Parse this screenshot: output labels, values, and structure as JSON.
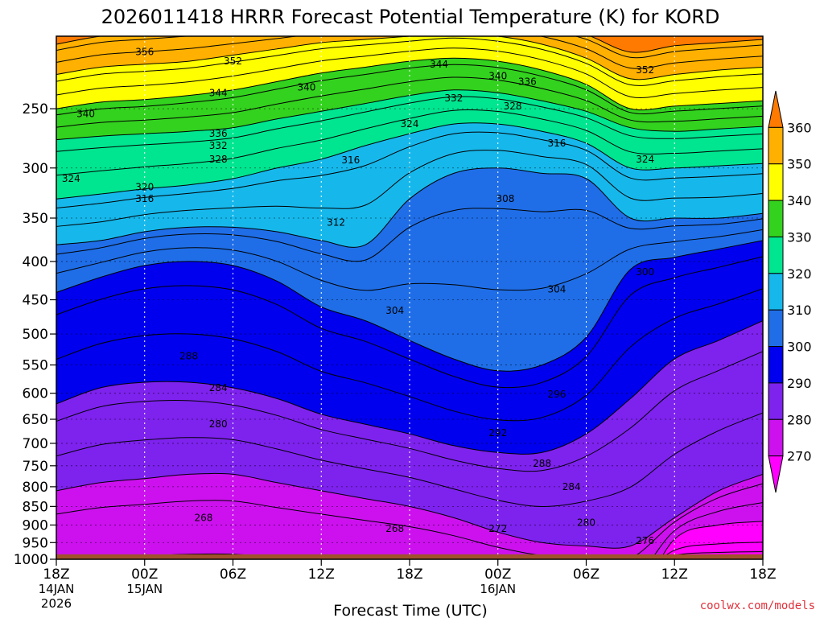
{
  "title": "2026011418 HRRR Forecast Potential Temperature (K) for KORD",
  "credit": "coolwx.com/models",
  "colors": {
    "ground": "#a0522d",
    "background": "#ffffff"
  },
  "chart_data": {
    "type": "heatmap",
    "title": "2026011418 HRRR Forecast Potential Temperature (K) for KORD",
    "xlabel": "Forecast Time (UTC)",
    "ylabel": "",
    "x_range_hours": [
      0,
      48
    ],
    "y_range_hpa": [
      1000,
      200
    ],
    "y_scale": "log-pressure",
    "grid": true,
    "x_ticks": [
      {
        "hour": 0,
        "label": "18Z",
        "sub": [
          "14JAN",
          "2026"
        ]
      },
      {
        "hour": 6,
        "label": "00Z",
        "sub": [
          "15JAN"
        ]
      },
      {
        "hour": 12,
        "label": "06Z",
        "sub": []
      },
      {
        "hour": 18,
        "label": "12Z",
        "sub": []
      },
      {
        "hour": 24,
        "label": "18Z",
        "sub": []
      },
      {
        "hour": 30,
        "label": "00Z",
        "sub": [
          "16JAN"
        ]
      },
      {
        "hour": 36,
        "label": "06Z",
        "sub": []
      },
      {
        "hour": 42,
        "label": "12Z",
        "sub": []
      },
      {
        "hour": 48,
        "label": "18Z",
        "sub": []
      }
    ],
    "y_ticks": [
      250,
      300,
      350,
      400,
      450,
      500,
      550,
      600,
      650,
      700,
      750,
      800,
      850,
      900,
      950,
      1000
    ],
    "colorbar": {
      "levels": [
        270,
        280,
        290,
        300,
        310,
        320,
        330,
        340,
        350,
        360
      ],
      "colors": [
        "#ff00ff",
        "#cc11ee",
        "#7e22ee",
        "#0000ee",
        "#1f6ee8",
        "#16b8ec",
        "#00e690",
        "#33d21e",
        "#ffff00",
        "#ffb000",
        "#ff7a00"
      ],
      "min_value": 260,
      "max_value": 370
    },
    "theta_levels": [
      270,
      280,
      290,
      300,
      310,
      320,
      330,
      340,
      350,
      360
    ],
    "columns": [
      {
        "hour": 0,
        "p": [
          null,
          810,
          620,
          440,
          380,
          330,
          275,
          250,
          225,
          205
        ]
      },
      {
        "hour": 3,
        "p": [
          null,
          790,
          590,
          420,
          375,
          325,
          272,
          245,
          220,
          200
        ]
      },
      {
        "hour": 6,
        "p": [
          null,
          780,
          580,
          405,
          365,
          320,
          270,
          243,
          218,
          198
        ]
      },
      {
        "hour": 9,
        "p": [
          null,
          770,
          580,
          400,
          360,
          316,
          268,
          240,
          216,
          196
        ]
      },
      {
        "hour": 12,
        "p": [
          null,
          770,
          590,
          405,
          360,
          310,
          265,
          236,
          212,
          194
        ]
      },
      {
        "hour": 15,
        "p": [
          null,
          790,
          610,
          425,
          365,
          300,
          258,
          230,
          208,
          192
        ]
      },
      {
        "hour": 18,
        "p": [
          null,
          810,
          640,
          460,
          375,
          292,
          252,
          224,
          204,
          190
        ]
      },
      {
        "hour": 21,
        "p": [
          null,
          830,
          660,
          480,
          380,
          280,
          246,
          220,
          202,
          189
        ]
      },
      {
        "hour": 24,
        "p": [
          null,
          850,
          680,
          510,
          330,
          270,
          240,
          216,
          200,
          188
        ]
      },
      {
        "hour": 27,
        "p": [
          null,
          880,
          705,
          540,
          305,
          262,
          236,
          214,
          198,
          188
        ]
      },
      {
        "hour": 30,
        "p": [
          null,
          920,
          720,
          560,
          300,
          262,
          238,
          216,
          200,
          190
        ]
      },
      {
        "hour": 33,
        "p": [
          null,
          950,
          720,
          550,
          305,
          268,
          244,
          222,
          205,
          193
        ]
      },
      {
        "hour": 36,
        "p": [
          null,
          960,
          680,
          505,
          310,
          278,
          252,
          232,
          214,
          199
        ]
      },
      {
        "hour": 39,
        "p": [
          null,
          960,
          610,
          410,
          350,
          300,
          265,
          250,
          228,
          210
        ]
      },
      {
        "hour": 42,
        "p": [
          940,
          880,
          540,
          395,
          350,
          300,
          268,
          248,
          225,
          206
        ]
      },
      {
        "hour": 45,
        "p": [
          900,
          810,
          510,
          385,
          350,
          298,
          266,
          246,
          222,
          204
        ]
      },
      {
        "hour": 48,
        "p": [
          890,
          770,
          480,
          375,
          345,
          296,
          264,
          244,
          220,
          202
        ]
      }
    ],
    "ground_top_hpa": 985,
    "contour_labels": [
      {
        "value": "356",
        "hour": 6.0,
        "p": 210
      },
      {
        "value": "352",
        "hour": 12.0,
        "p": 216
      },
      {
        "value": "344",
        "hour": 26.0,
        "p": 218
      },
      {
        "value": "340",
        "hour": 30.0,
        "p": 226
      },
      {
        "value": "336",
        "hour": 32.0,
        "p": 230
      },
      {
        "value": "352",
        "hour": 40.0,
        "p": 222
      },
      {
        "value": "344",
        "hour": 11.0,
        "p": 238
      },
      {
        "value": "340",
        "hour": 17.0,
        "p": 234
      },
      {
        "value": "332",
        "hour": 27.0,
        "p": 242
      },
      {
        "value": "328",
        "hour": 31.0,
        "p": 248
      },
      {
        "value": "340",
        "hour": 2.0,
        "p": 254
      },
      {
        "value": "324",
        "hour": 24.0,
        "p": 262
      },
      {
        "value": "336",
        "hour": 11.0,
        "p": 270
      },
      {
        "value": "332",
        "hour": 11.0,
        "p": 280
      },
      {
        "value": "328",
        "hour": 11.0,
        "p": 292
      },
      {
        "value": "316",
        "hour": 34.0,
        "p": 278
      },
      {
        "value": "316",
        "hour": 20.0,
        "p": 293
      },
      {
        "value": "324",
        "hour": 40.0,
        "p": 292
      },
      {
        "value": "324",
        "hour": 1.0,
        "p": 310
      },
      {
        "value": "320",
        "hour": 6.0,
        "p": 318
      },
      {
        "value": "316",
        "hour": 6.0,
        "p": 330
      },
      {
        "value": "308",
        "hour": 30.5,
        "p": 330
      },
      {
        "value": "312",
        "hour": 19.0,
        "p": 355
      },
      {
        "value": "300",
        "hour": 40.0,
        "p": 413
      },
      {
        "value": "304",
        "hour": 34.0,
        "p": 436
      },
      {
        "value": "304",
        "hour": 23.0,
        "p": 465
      },
      {
        "value": "288",
        "hour": 9.0,
        "p": 535
      },
      {
        "value": "284",
        "hour": 11.0,
        "p": 590
      },
      {
        "value": "296",
        "hour": 34.0,
        "p": 602
      },
      {
        "value": "280",
        "hour": 11.0,
        "p": 660
      },
      {
        "value": "292",
        "hour": 30.0,
        "p": 678
      },
      {
        "value": "288",
        "hour": 33.0,
        "p": 745
      },
      {
        "value": "284",
        "hour": 35.0,
        "p": 800
      },
      {
        "value": "268",
        "hour": 10.0,
        "p": 880
      },
      {
        "value": "280",
        "hour": 36.0,
        "p": 893
      },
      {
        "value": "268",
        "hour": 23.0,
        "p": 910
      },
      {
        "value": "272",
        "hour": 30.0,
        "p": 910
      },
      {
        "value": "276",
        "hour": 40.0,
        "p": 945
      }
    ]
  }
}
